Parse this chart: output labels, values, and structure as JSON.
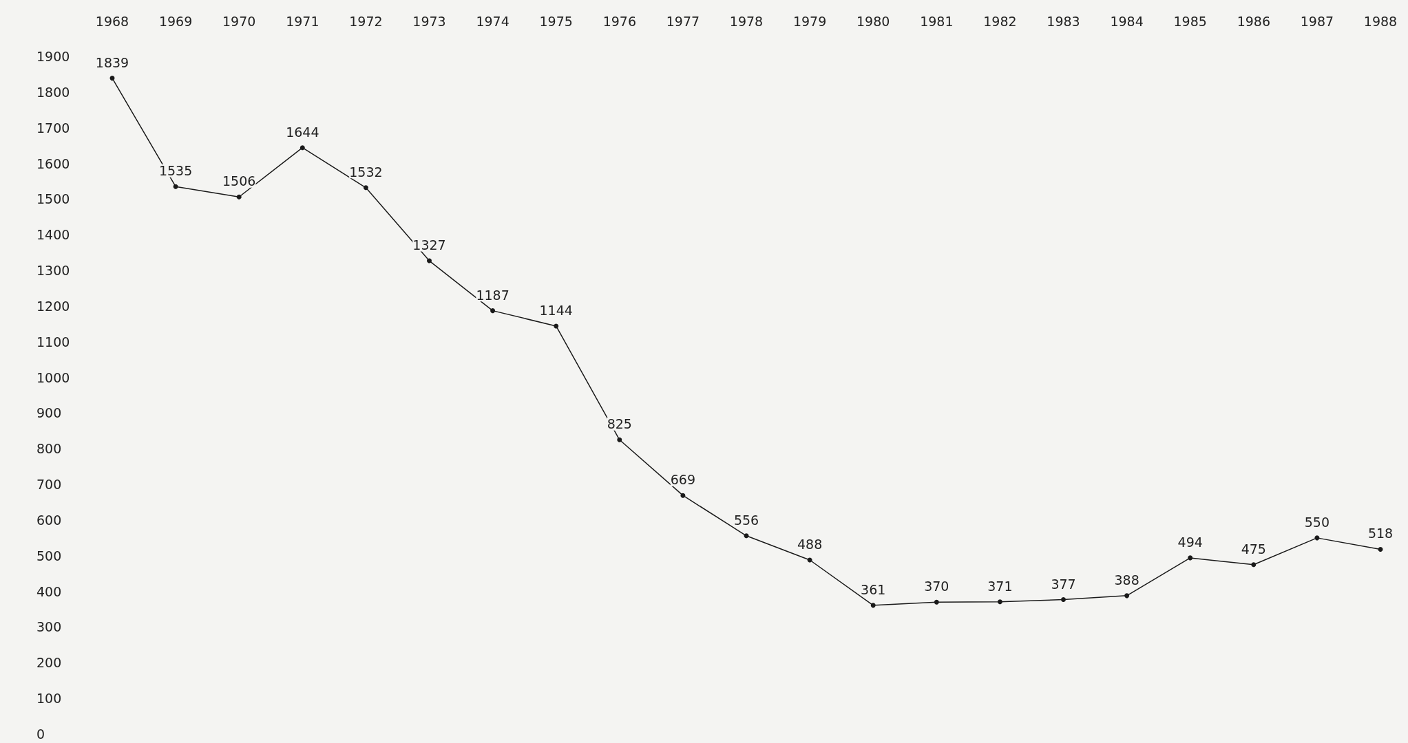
{
  "chart_data": {
    "type": "line",
    "categories": [
      "1968",
      "1969",
      "1970",
      "1971",
      "1972",
      "1973",
      "1974",
      "1975",
      "1976",
      "1977",
      "1978",
      "1979",
      "1980",
      "1981",
      "1982",
      "1983",
      "1984",
      "1985",
      "1986",
      "1987",
      "1988"
    ],
    "series": [
      {
        "color": "#1a1a1a",
        "values": [
          1839,
          1535,
          1506,
          1644,
          1532,
          1327,
          1187,
          1144,
          825,
          669,
          556,
          488,
          361,
          370,
          371,
          377,
          388,
          494,
          475,
          550,
          518
        ]
      }
    ],
    "ylim": [
      0,
      1900
    ],
    "yticks": [
      0,
      100,
      200,
      300,
      400,
      500,
      600,
      700,
      800,
      900,
      1000,
      1100,
      1200,
      1300,
      1400,
      1500,
      1600,
      1700,
      1800,
      1900
    ],
    "grid": false,
    "marker": "circle",
    "line_style": "solid",
    "data_labels": true
  }
}
